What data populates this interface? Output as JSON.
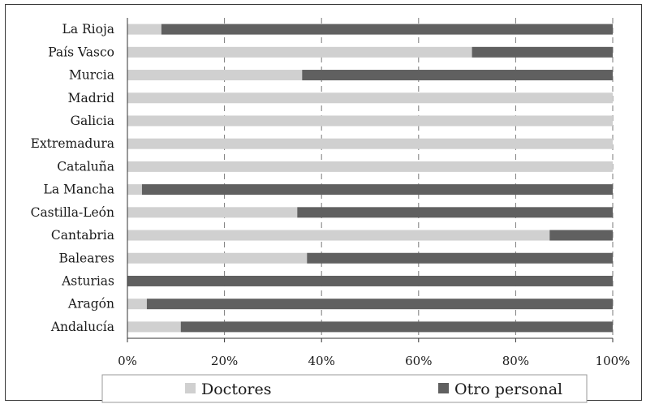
{
  "chart_data": {
    "type": "bar",
    "orientation": "horizontal",
    "stacked": "percent",
    "categories": [
      "Andalucía",
      "Aragón",
      "Asturias",
      "Baleares",
      "Cantabria",
      "Castilla-León",
      "La Mancha",
      "Cataluña",
      "Extremadura",
      "Galicia",
      "Madrid",
      "Murcia",
      "País Vasco",
      "La Rioja"
    ],
    "series": [
      {
        "name": "Doctores",
        "color": "#d0d0d0",
        "values": [
          11,
          4,
          0,
          37,
          87,
          35,
          3,
          100,
          100,
          100,
          100,
          36,
          71,
          7
        ]
      },
      {
        "name": "Otro personal",
        "color": "#606060",
        "values": [
          89,
          96,
          100,
          63,
          13,
          65,
          97,
          0,
          0,
          0,
          0,
          64,
          29,
          93
        ]
      }
    ],
    "xlim": [
      0,
      100
    ],
    "xticks": [
      "0%",
      "20%",
      "40%",
      "60%",
      "80%",
      "100%"
    ],
    "grid": "vertical dashed",
    "legend_position": "bottom"
  }
}
